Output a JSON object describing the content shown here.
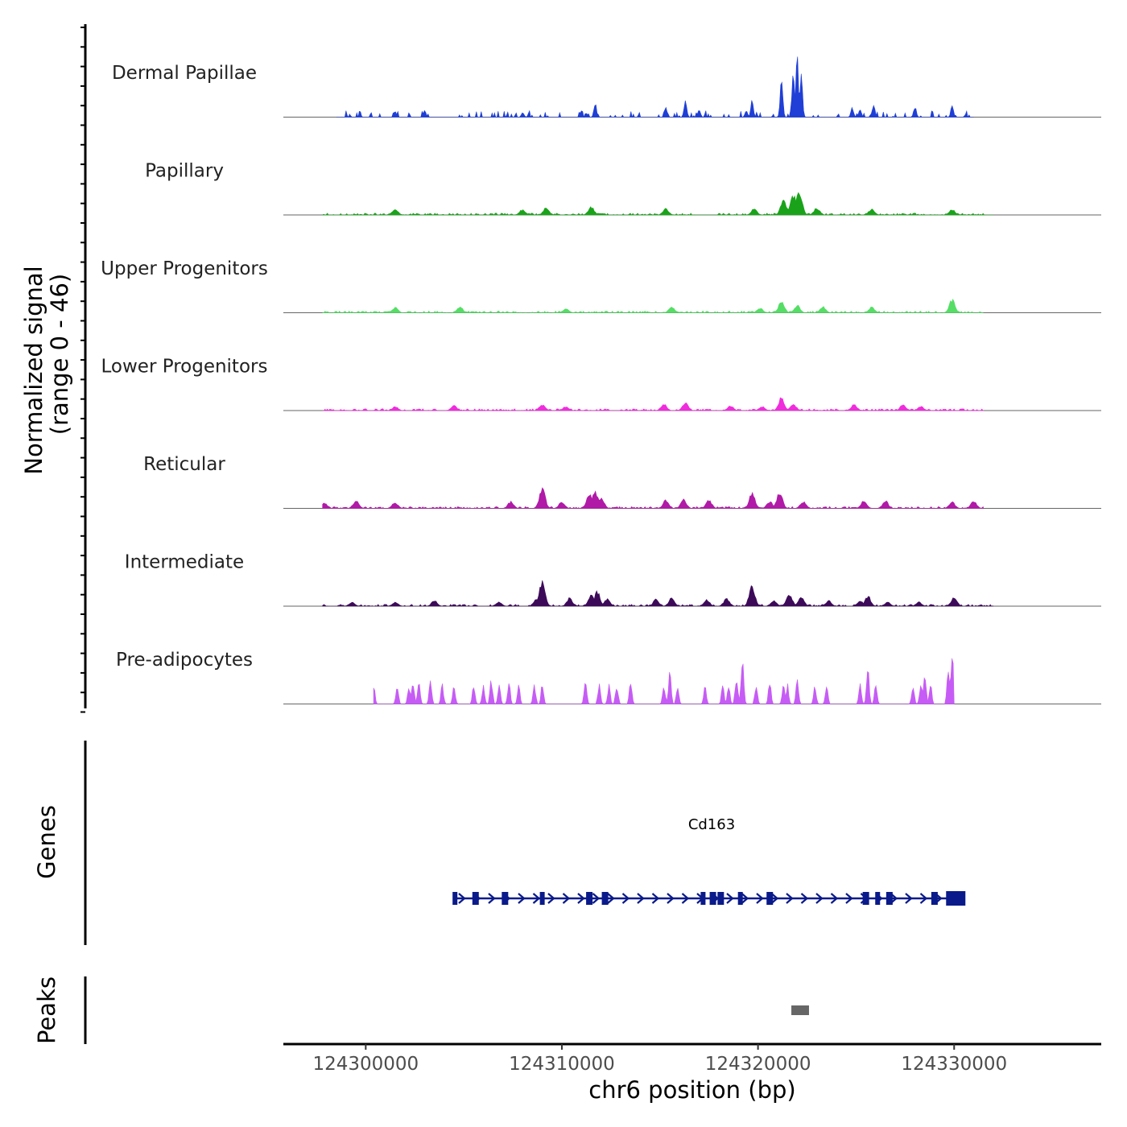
{
  "chart_data": {
    "type": "area",
    "title": "",
    "ylabel": "Normalized signal",
    "ylabel_range": "(range 0 - 46)",
    "ylim": [
      0,
      46
    ],
    "xlabel": "chr6 position (bp)",
    "xlim": [
      124295800,
      124337500
    ],
    "xticks": [
      124300000,
      124310000,
      124320000,
      124330000
    ],
    "xtick_labels": [
      "124300000",
      "124310000",
      "124320000",
      "124330000"
    ],
    "series": [
      {
        "name": "Dermal Papillae",
        "color": "#1f3fd6",
        "data_range": [
          124298500,
          124331000
        ],
        "peaks": [
          [
            124301500,
            10
          ],
          [
            124303000,
            11
          ],
          [
            124308000,
            8
          ],
          [
            124311700,
            22
          ],
          [
            124315300,
            15
          ],
          [
            124316300,
            28
          ],
          [
            124317000,
            13
          ],
          [
            124319400,
            9
          ],
          [
            124319700,
            26
          ],
          [
            124321200,
            55
          ],
          [
            124321800,
            72
          ],
          [
            124322000,
            92
          ],
          [
            124322200,
            70
          ],
          [
            124324800,
            15
          ],
          [
            124325200,
            12
          ],
          [
            124325900,
            18
          ],
          [
            124328000,
            16
          ],
          [
            124329900,
            19
          ]
        ]
      },
      {
        "name": "Papillary",
        "color": "#1aa31a",
        "data_range": [
          124297800,
          124332000
        ],
        "peaks": [
          [
            124301500,
            8
          ],
          [
            124308000,
            8
          ],
          [
            124309200,
            10
          ],
          [
            124311500,
            12
          ],
          [
            124315300,
            9
          ],
          [
            124319800,
            9
          ],
          [
            124321300,
            23
          ],
          [
            124321800,
            30
          ],
          [
            124322100,
            35
          ],
          [
            124323000,
            10
          ],
          [
            124325800,
            9
          ],
          [
            124329900,
            8
          ]
        ]
      },
      {
        "name": "Upper Progenitors",
        "color": "#55dd66",
        "data_range": [
          124297800,
          124331500
        ],
        "peaks": [
          [
            124301500,
            8
          ],
          [
            124304800,
            9
          ],
          [
            124310200,
            6
          ],
          [
            124315600,
            9
          ],
          [
            124320100,
            7
          ],
          [
            124321200,
            17
          ],
          [
            124322000,
            11
          ],
          [
            124323300,
            9
          ],
          [
            124325800,
            8
          ],
          [
            124329900,
            19
          ]
        ]
      },
      {
        "name": "Lower Progenitors",
        "color": "#ef2ddc",
        "data_range": [
          124297800,
          124331500
        ],
        "peaks": [
          [
            124301500,
            6
          ],
          [
            124304500,
            7
          ],
          [
            124309000,
            9
          ],
          [
            124310200,
            6
          ],
          [
            124315200,
            10
          ],
          [
            124316300,
            11
          ],
          [
            124318600,
            7
          ],
          [
            124320200,
            6
          ],
          [
            124321200,
            19
          ],
          [
            124321800,
            10
          ],
          [
            124324900,
            9
          ],
          [
            124327400,
            9
          ],
          [
            124328300,
            6
          ]
        ]
      },
      {
        "name": "Reticular",
        "color": "#b01aa7",
        "data_range": [
          124297800,
          124331500
        ],
        "peaks": [
          [
            124297900,
            8
          ],
          [
            124299500,
            11
          ],
          [
            124301500,
            9
          ],
          [
            124307400,
            10
          ],
          [
            124309000,
            31
          ],
          [
            124310000,
            10
          ],
          [
            124311400,
            22
          ],
          [
            124311700,
            26
          ],
          [
            124312000,
            16
          ],
          [
            124315300,
            12
          ],
          [
            124316200,
            13
          ],
          [
            124317500,
            12
          ],
          [
            124319700,
            22
          ],
          [
            124320600,
            10
          ],
          [
            124321100,
            24
          ],
          [
            124322300,
            10
          ],
          [
            124325400,
            11
          ],
          [
            124326500,
            11
          ],
          [
            124329900,
            9
          ],
          [
            124331000,
            11
          ]
        ]
      },
      {
        "name": "Intermediate",
        "color": "#3d0a59",
        "data_range": [
          124297800,
          124332000
        ],
        "peaks": [
          [
            124299300,
            6
          ],
          [
            124301500,
            6
          ],
          [
            124303500,
            8
          ],
          [
            124306800,
            6
          ],
          [
            124308700,
            10
          ],
          [
            124309000,
            36
          ],
          [
            124310400,
            12
          ],
          [
            124311500,
            16
          ],
          [
            124311800,
            21
          ],
          [
            124312300,
            11
          ],
          [
            124314800,
            10
          ],
          [
            124315600,
            12
          ],
          [
            124317400,
            9
          ],
          [
            124318400,
            11
          ],
          [
            124319700,
            31
          ],
          [
            124320800,
            8
          ],
          [
            124321600,
            19
          ],
          [
            124322200,
            15
          ],
          [
            124323600,
            8
          ],
          [
            124325200,
            8
          ],
          [
            124325600,
            15
          ],
          [
            124326600,
            6
          ],
          [
            124328200,
            6
          ],
          [
            124330000,
            14
          ]
        ]
      },
      {
        "name": "Pre-adipocytes",
        "color": "#c65cf5",
        "data_range": [
          124300400,
          124330000
        ],
        "peaks": [
          [
            124300400,
            28
          ],
          [
            124301600,
            28
          ],
          [
            124302200,
            28
          ],
          [
            124302400,
            35
          ],
          [
            124302700,
            35
          ],
          [
            124303300,
            35
          ],
          [
            124303900,
            28
          ],
          [
            124304500,
            28
          ],
          [
            124305500,
            28
          ],
          [
            124306000,
            28
          ],
          [
            124306400,
            35
          ],
          [
            124306800,
            28
          ],
          [
            124307300,
            35
          ],
          [
            124307800,
            28
          ],
          [
            124308600,
            28
          ],
          [
            124309000,
            28
          ],
          [
            124311200,
            35
          ],
          [
            124311900,
            28
          ],
          [
            124312400,
            28
          ],
          [
            124312800,
            28
          ],
          [
            124313500,
            35
          ],
          [
            124315200,
            28
          ],
          [
            124315500,
            50
          ],
          [
            124315900,
            28
          ],
          [
            124317300,
            28
          ],
          [
            124318200,
            28
          ],
          [
            124318500,
            28
          ],
          [
            124318900,
            40
          ],
          [
            124319200,
            70
          ],
          [
            124319900,
            28
          ],
          [
            124320600,
            35
          ],
          [
            124321300,
            35
          ],
          [
            124321500,
            28
          ],
          [
            124322000,
            40
          ],
          [
            124322900,
            28
          ],
          [
            124323500,
            28
          ],
          [
            124325200,
            28
          ],
          [
            124325600,
            55
          ],
          [
            124326000,
            28
          ],
          [
            124327900,
            28
          ],
          [
            124328300,
            30
          ],
          [
            124328500,
            50
          ],
          [
            124328800,
            28
          ],
          [
            124329700,
            55
          ],
          [
            124329900,
            65
          ],
          [
            124330000,
            90
          ]
        ]
      }
    ],
    "genes_track": {
      "label": "Genes",
      "gene_name": "Cd163",
      "color": "#0a1a8a",
      "start": 124304500,
      "end": 124330500,
      "exons": [
        124304550,
        124305600,
        124307100,
        124309000,
        124311400,
        124312200,
        124317200,
        124317700,
        124318100,
        124319100,
        124320600,
        124325500,
        124326100,
        124326700,
        124329000,
        124330000
      ]
    },
    "peaks_track": {
      "label": "Peaks",
      "color": "#666666",
      "regions": [
        [
          124321700,
          124322600
        ]
      ]
    }
  }
}
